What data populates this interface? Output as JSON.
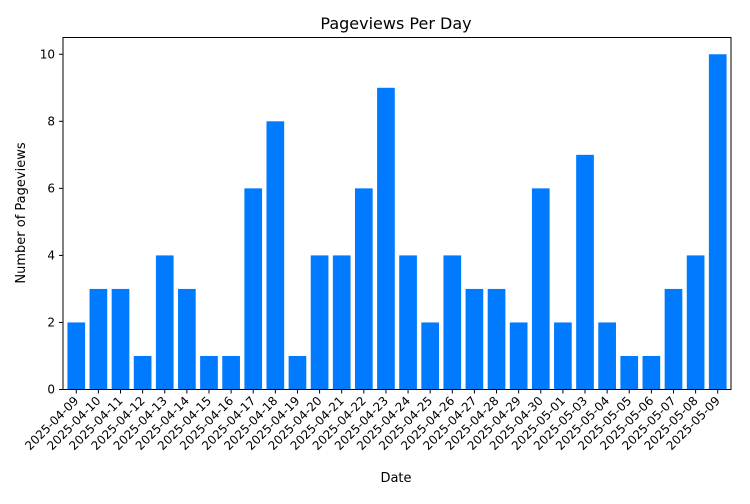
{
  "chart_data": {
    "type": "bar",
    "title": "Pageviews Per Day",
    "xlabel": "Date",
    "ylabel": "Number of Pageviews",
    "categories": [
      "2025-04-09",
      "2025-04-10",
      "2025-04-11",
      "2025-04-12",
      "2025-04-13",
      "2025-04-14",
      "2025-04-15",
      "2025-04-16",
      "2025-04-17",
      "2025-04-18",
      "2025-04-19",
      "2025-04-20",
      "2025-04-21",
      "2025-04-22",
      "2025-04-23",
      "2025-04-24",
      "2025-04-25",
      "2025-04-26",
      "2025-04-27",
      "2025-04-28",
      "2025-04-29",
      "2025-04-30",
      "2025-05-01",
      "2025-05-03",
      "2025-05-04",
      "2025-05-05",
      "2025-05-06",
      "2025-05-07",
      "2025-05-08",
      "2025-05-09"
    ],
    "values": [
      2,
      3,
      3,
      1,
      4,
      3,
      1,
      1,
      6,
      8,
      1,
      4,
      4,
      6,
      9,
      4,
      2,
      4,
      3,
      3,
      2,
      6,
      2,
      7,
      2,
      1,
      1,
      3,
      4,
      10
    ],
    "ylim": [
      0,
      10.5
    ],
    "yticks": [
      "0",
      "2",
      "4",
      "6",
      "8",
      "10"
    ],
    "bar_color": "#007bff",
    "grid": false,
    "legend": "none"
  }
}
